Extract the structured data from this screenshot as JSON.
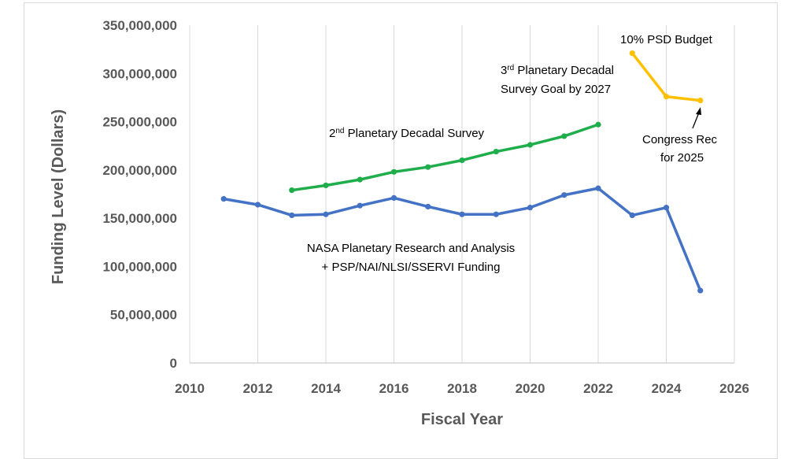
{
  "chart_data": {
    "type": "line",
    "xlabel": "Fiscal Year",
    "ylabel": "Funding Level (Dollars)",
    "xlim": [
      2010,
      2026
    ],
    "ylim": [
      0,
      350000000
    ],
    "x_ticks": [
      2010,
      2012,
      2014,
      2016,
      2018,
      2020,
      2022,
      2024,
      2026
    ],
    "x_tick_labels": [
      "2010",
      "2012",
      "2014",
      "2016",
      "2018",
      "2020",
      "2022",
      "2024",
      "2026"
    ],
    "y_ticks": [
      0,
      50000000,
      100000000,
      150000000,
      200000000,
      250000000,
      300000000,
      350000000
    ],
    "y_tick_labels": [
      "0",
      "50,000,000",
      "100,000,000",
      "150,000,000",
      "200,000,000",
      "250,000,000",
      "300,000,000",
      "350,000,000"
    ],
    "grid": "vertical",
    "series": [
      {
        "color": "#4472C4",
        "x": [
          2011,
          2012,
          2013,
          2014,
          2015,
          2016,
          2017,
          2018,
          2019,
          2020,
          2021,
          2022,
          2023,
          2024,
          2025
        ],
        "y": [
          170000000,
          164000000,
          153000000,
          154000000,
          163000000,
          171000000,
          162000000,
          154000000,
          154000000,
          161000000,
          174000000,
          181000000,
          153000000,
          161000000,
          75000000
        ]
      },
      {
        "color": "#1FAE4B",
        "x": [
          2013,
          2014,
          2015,
          2016,
          2017,
          2018,
          2019,
          2020,
          2021,
          2022
        ],
        "y": [
          179000000,
          184000000,
          190000000,
          198000000,
          203000000,
          210000000,
          219000000,
          226000000,
          235000000,
          247000000
        ]
      },
      {
        "color": "#FFC000",
        "x": [
          2023,
          2024,
          2025
        ],
        "y": [
          321000000,
          276000000,
          272000000
        ]
      }
    ],
    "annotations": {
      "psd_budget": "10% PSD Budget",
      "third_survey_pre": "3",
      "third_survey_sup": "rd",
      "third_survey_rest": " Planetary Decadal",
      "third_survey_line2": "Survey Goal by 2027",
      "second_survey_pre": "2",
      "second_survey_sup": "nd",
      "second_survey_rest": " Planetary Decadal Survey",
      "congress_line1": "Congress Rec",
      "congress_line2": "for 2025",
      "nasa_line1": "NASA Planetary Research and Analysis",
      "nasa_line2": "+ PSP/NAI/NLSI/SSERVI Funding"
    }
  }
}
